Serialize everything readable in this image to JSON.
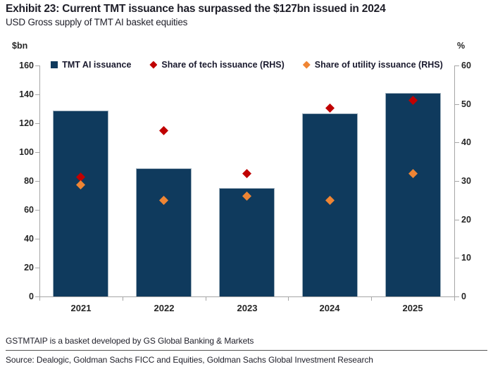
{
  "header": {
    "exhibit_title": "Exhibit 23: Current TMT issuance has surpassed the $127bn issued in 2024",
    "subtitle": "USD Gross supply of TMT AI basket equities"
  },
  "chart_data": {
    "type": "bar",
    "title": "USD Gross supply of TMT AI basket equities",
    "categories": [
      "2021",
      "2022",
      "2023",
      "2024",
      "2025"
    ],
    "series": [
      {
        "name": "TMT AI issuance",
        "type": "bar",
        "axis": "left",
        "color": "#0f3a5d",
        "values": [
          129,
          89,
          75,
          127,
          141
        ]
      },
      {
        "name": "Share of tech issuance (RHS)",
        "type": "scatter",
        "marker": "diamond",
        "axis": "right",
        "color": "#c00000",
        "values": [
          31,
          43,
          32,
          49,
          51
        ]
      },
      {
        "name": "Share of utility issuance (RHS)",
        "type": "scatter",
        "marker": "diamond",
        "axis": "right",
        "color": "#ef8534",
        "values": [
          29,
          25,
          26,
          25,
          32
        ]
      }
    ],
    "left_axis": {
      "label": "$bn",
      "min": 0,
      "max": 160,
      "step": 20
    },
    "right_axis": {
      "label": "%",
      "min": 0,
      "max": 60,
      "step": 10
    },
    "legend_position": "top",
    "grid": false,
    "axis_color": "#a6a6a6"
  },
  "footer": {
    "note": "GSTMTAIP is a basket developed by GS Global Banking & Markets",
    "source": "Source: Dealogic, Goldman Sachs FICC and Equities, Goldman Sachs Global Investment Research"
  }
}
